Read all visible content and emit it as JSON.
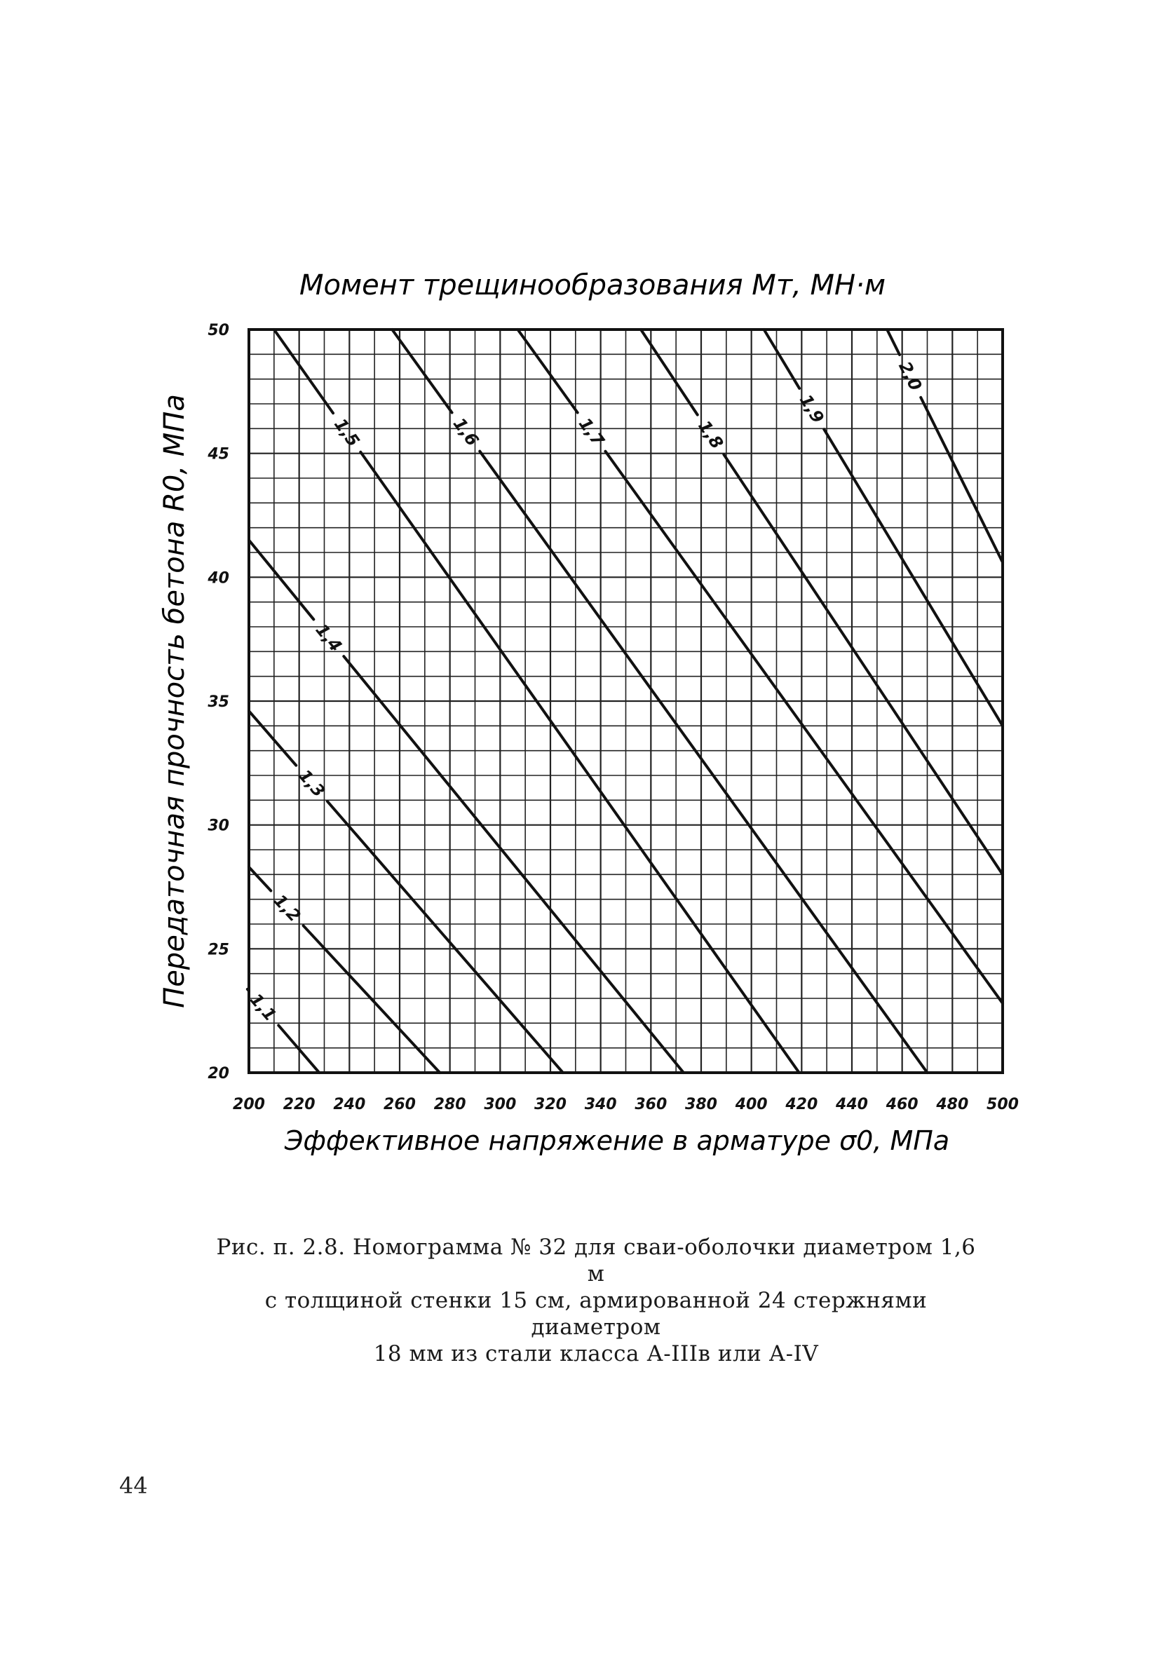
{
  "chart_data": {
    "type": "line",
    "title": "Момент трещинообразования Мт, МН·м",
    "xlabel": "Эффективное напряжение в арматуре σ0, МПа",
    "ylabel": "Передаточная прочность бетона R0, МПа",
    "xlim": [
      200,
      500
    ],
    "ylim": [
      20,
      50
    ],
    "x_ticks": [
      "200",
      "220",
      "240",
      "260",
      "280",
      "300",
      "320",
      "340",
      "360",
      "380",
      "400",
      "420",
      "440",
      "460",
      "480",
      "500"
    ],
    "y_ticks": [
      "20",
      "25",
      "30",
      "35",
      "40",
      "45",
      "50"
    ],
    "grid": true,
    "series": [
      {
        "name": "1,1",
        "points": [
          [
            200,
            23.3
          ],
          [
            228,
            20
          ]
        ]
      },
      {
        "name": "1,2",
        "points": [
          [
            200,
            28.3
          ],
          [
            276,
            20
          ]
        ]
      },
      {
        "name": "1,3",
        "points": [
          [
            200,
            34.6
          ],
          [
            325,
            20
          ]
        ]
      },
      {
        "name": "1,4",
        "points": [
          [
            200,
            41.5
          ],
          [
            373,
            20
          ]
        ]
      },
      {
        "name": "1,5",
        "points": [
          [
            210,
            50
          ],
          [
            419,
            20
          ]
        ]
      },
      {
        "name": "1,6",
        "points": [
          [
            257,
            50
          ],
          [
            470,
            20
          ]
        ]
      },
      {
        "name": "1,7",
        "points": [
          [
            307,
            50
          ],
          [
            500,
            22.8
          ]
        ]
      },
      {
        "name": "1,8",
        "points": [
          [
            356,
            50
          ],
          [
            500,
            28
          ]
        ]
      },
      {
        "name": "1,9",
        "points": [
          [
            405,
            50
          ],
          [
            500,
            34
          ]
        ]
      },
      {
        "name": "2,0",
        "points": [
          [
            454,
            50
          ],
          [
            500,
            40.6
          ]
        ]
      }
    ]
  },
  "caption": {
    "line1": "Рис. п. 2.8. Номограмма № 32 для сваи-оболочки диаметром 1,6 м",
    "line2": "с толщиной стенки 15 см, армированной 24 стержнями диаметром",
    "line3": "18 мм из стали класса А-IIIв или А-IV"
  },
  "page_number": "44"
}
